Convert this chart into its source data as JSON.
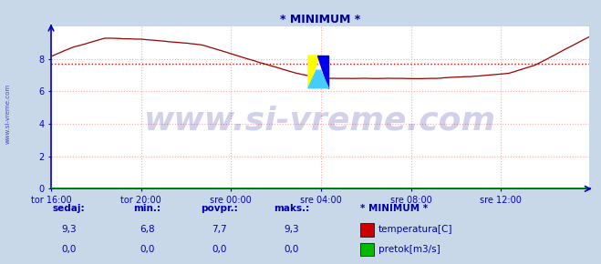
{
  "title": "* MINIMUM *",
  "title_color": "#000099",
  "bg_color": "#c8d8e8",
  "plot_bg_color": "#ffffff",
  "grid_color": "#ffaaaa",
  "axis_color": "#0000cc",
  "text_color": "#0000aa",
  "ylim": [
    0,
    10
  ],
  "yticks": [
    0,
    2,
    4,
    6,
    8
  ],
  "watermark": "www.si-vreme.com",
  "watermark_color": "#000088",
  "watermark_alpha": 0.18,
  "watermark_fontsize": 26,
  "legend_title": "* MINIMUM *",
  "legend_entries": [
    "temperatura[C]",
    "pretok[m3/s]"
  ],
  "legend_colors": [
    "#cc0000",
    "#00bb00"
  ],
  "table_headers": [
    "sedaj:",
    "min.:",
    "povpr.:",
    "maks.:"
  ],
  "table_row1": [
    "9,3",
    "6,8",
    "7,7",
    "9,3"
  ],
  "table_row2": [
    "0,0",
    "0,0",
    "0,0",
    "0,0"
  ],
  "avg_line_value": 7.7,
  "avg_line_color": "#dd0000",
  "temp_line_color": "#990000",
  "pretok_line_color": "#00aa00",
  "x_tick_labels": [
    "tor 16:00",
    "tor 20:00",
    "sre 00:00",
    "sre 04:00",
    "sre 08:00",
    "sre 12:00"
  ],
  "x_tick_positions": [
    0,
    48,
    96,
    144,
    192,
    240
  ],
  "n_points": 288,
  "side_label": "www.si-vreme.com",
  "side_label_color": "#0000aa"
}
